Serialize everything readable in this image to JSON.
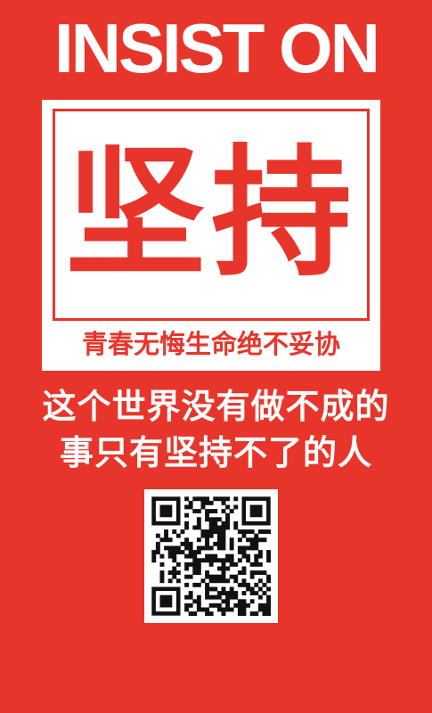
{
  "headline": "INSIST ON",
  "card": {
    "big_text": "坚持",
    "subtitle": "青春无悔生命绝不妥协"
  },
  "slogan": {
    "line1": "这个世界没有做不成的",
    "line2": "事只有坚持不了的人"
  },
  "colors": {
    "background": "#e8352b",
    "accent": "#e8352b",
    "text_light": "#ffffff"
  },
  "qr_code": {
    "icon": "qr-code-icon"
  }
}
